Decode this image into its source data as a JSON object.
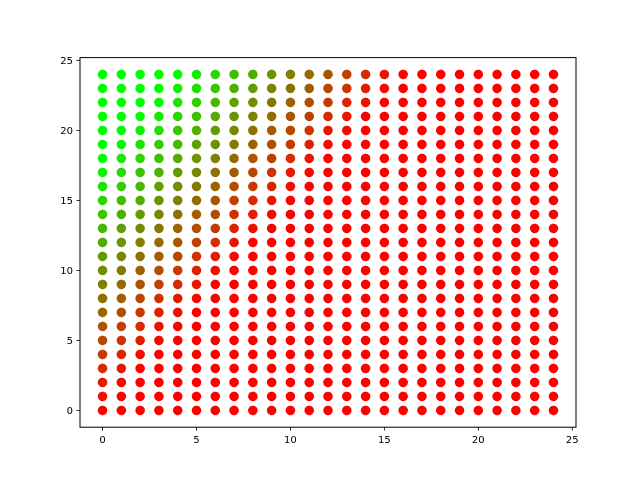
{
  "chart_data": {
    "type": "scatter",
    "title": "",
    "xlabel": "",
    "ylabel": "",
    "grid": false,
    "x_range": [
      -1.2,
      25.2
    ],
    "y_range": [
      -1.2,
      25.2
    ],
    "x_ticks": [
      0,
      5,
      10,
      15,
      20,
      25
    ],
    "y_ticks": [
      0,
      5,
      10,
      15,
      20,
      25
    ],
    "x_tick_labels": [
      "0",
      "5",
      "10",
      "15",
      "20",
      "25"
    ],
    "y_tick_labels": [
      "0",
      "5",
      "10",
      "15",
      "20",
      "25"
    ],
    "grid_points": {
      "x": {
        "start": 0,
        "end": 24,
        "step": 1
      },
      "y": {
        "start": 0,
        "end": 24,
        "step": 1
      }
    },
    "color_rule": "t = clamp((x + 2*(24 - y)/3 - 4) / 12, 0, 1); color interpolates from start_color (t=0) to end_color (t=1)",
    "start_color": "#00ff00",
    "end_color": "#ff0000"
  },
  "colors": {
    "background": "#ffffff",
    "axes": "#000000"
  }
}
